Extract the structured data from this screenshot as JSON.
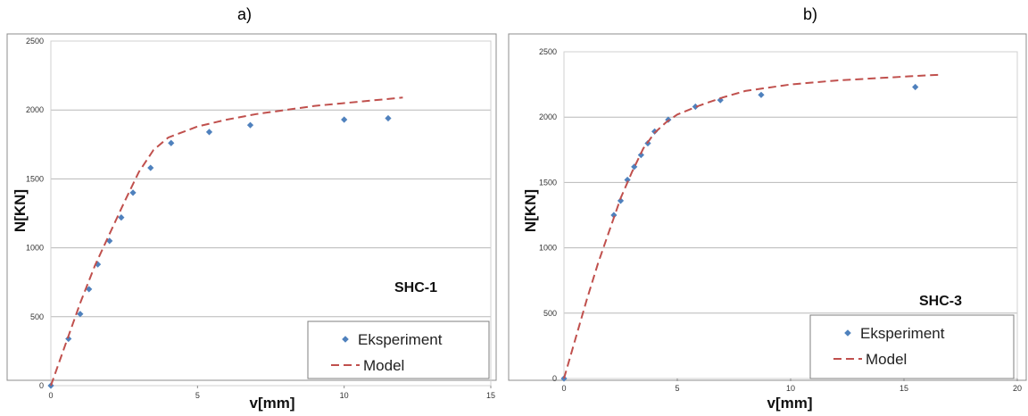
{
  "panels": {
    "a": {
      "letter": "a)"
    },
    "b": {
      "letter": "b)"
    }
  },
  "colors": {
    "experiment": "#4F81BD",
    "model": "#C0504D",
    "grid": "#b8b8b8",
    "frame": "#8c8c8c"
  },
  "chart_data": [
    {
      "type": "scatter",
      "panel": "a)",
      "annotation": "SHC-1",
      "xlabel": "v[mm]",
      "ylabel": "N[KN]",
      "xlim": [
        0,
        15
      ],
      "ylim": [
        0,
        2500
      ],
      "xticks": [
        0,
        5,
        10,
        15
      ],
      "yticks": [
        0,
        500,
        1000,
        1500,
        2000,
        2500
      ],
      "grid": "horizontal",
      "legend_placement": "bottom-right",
      "series": [
        {
          "name": "Eksperiment",
          "marker": "diamond",
          "x": [
            0,
            0.6,
            1.0,
            1.3,
            1.6,
            2.0,
            2.4,
            2.8,
            3.4,
            4.1,
            5.4,
            6.8,
            10.0,
            11.5
          ],
          "y": [
            0,
            340,
            520,
            700,
            880,
            1050,
            1220,
            1400,
            1580,
            1760,
            1840,
            1890,
            1930,
            1940
          ]
        },
        {
          "name": "Model",
          "style": "dashed",
          "x": [
            0,
            0.5,
            1.0,
            1.5,
            2.0,
            2.5,
            3.0,
            3.5,
            4.0,
            5.0,
            6.0,
            7.0,
            8.0,
            9.0,
            10.0,
            11.0,
            12.0
          ],
          "y": [
            0,
            300,
            600,
            870,
            1100,
            1330,
            1550,
            1710,
            1800,
            1880,
            1930,
            1970,
            2000,
            2030,
            2050,
            2070,
            2090
          ]
        }
      ]
    },
    {
      "type": "scatter",
      "panel": "b)",
      "annotation": "SHC-3",
      "xlabel": "v[mm]",
      "ylabel": "N[KN]",
      "xlim": [
        0,
        20
      ],
      "ylim": [
        0,
        2500
      ],
      "xticks": [
        0,
        5,
        10,
        15,
        20
      ],
      "yticks": [
        0,
        500,
        1000,
        1500,
        2000,
        2500
      ],
      "grid": "horizontal",
      "legend_placement": "bottom-right",
      "series": [
        {
          "name": "Eksperiment",
          "marker": "diamond",
          "x": [
            0,
            2.2,
            2.5,
            2.8,
            3.1,
            3.4,
            3.7,
            4.0,
            4.6,
            5.8,
            6.9,
            8.7,
            15.5
          ],
          "y": [
            0,
            1250,
            1360,
            1520,
            1620,
            1710,
            1800,
            1890,
            1980,
            2080,
            2130,
            2170,
            2230
          ]
        },
        {
          "name": "Model",
          "style": "dashed",
          "x": [
            0,
            0.5,
            1.0,
            1.5,
            2.0,
            2.5,
            3.0,
            3.5,
            4.0,
            4.5,
            5.0,
            6.0,
            7.0,
            8.0,
            10.0,
            12.0,
            14.0,
            16.0,
            16.7
          ],
          "y": [
            0,
            300,
            600,
            880,
            1130,
            1380,
            1580,
            1760,
            1880,
            1960,
            2020,
            2090,
            2150,
            2200,
            2250,
            2280,
            2300,
            2320,
            2325
          ]
        }
      ]
    }
  ]
}
